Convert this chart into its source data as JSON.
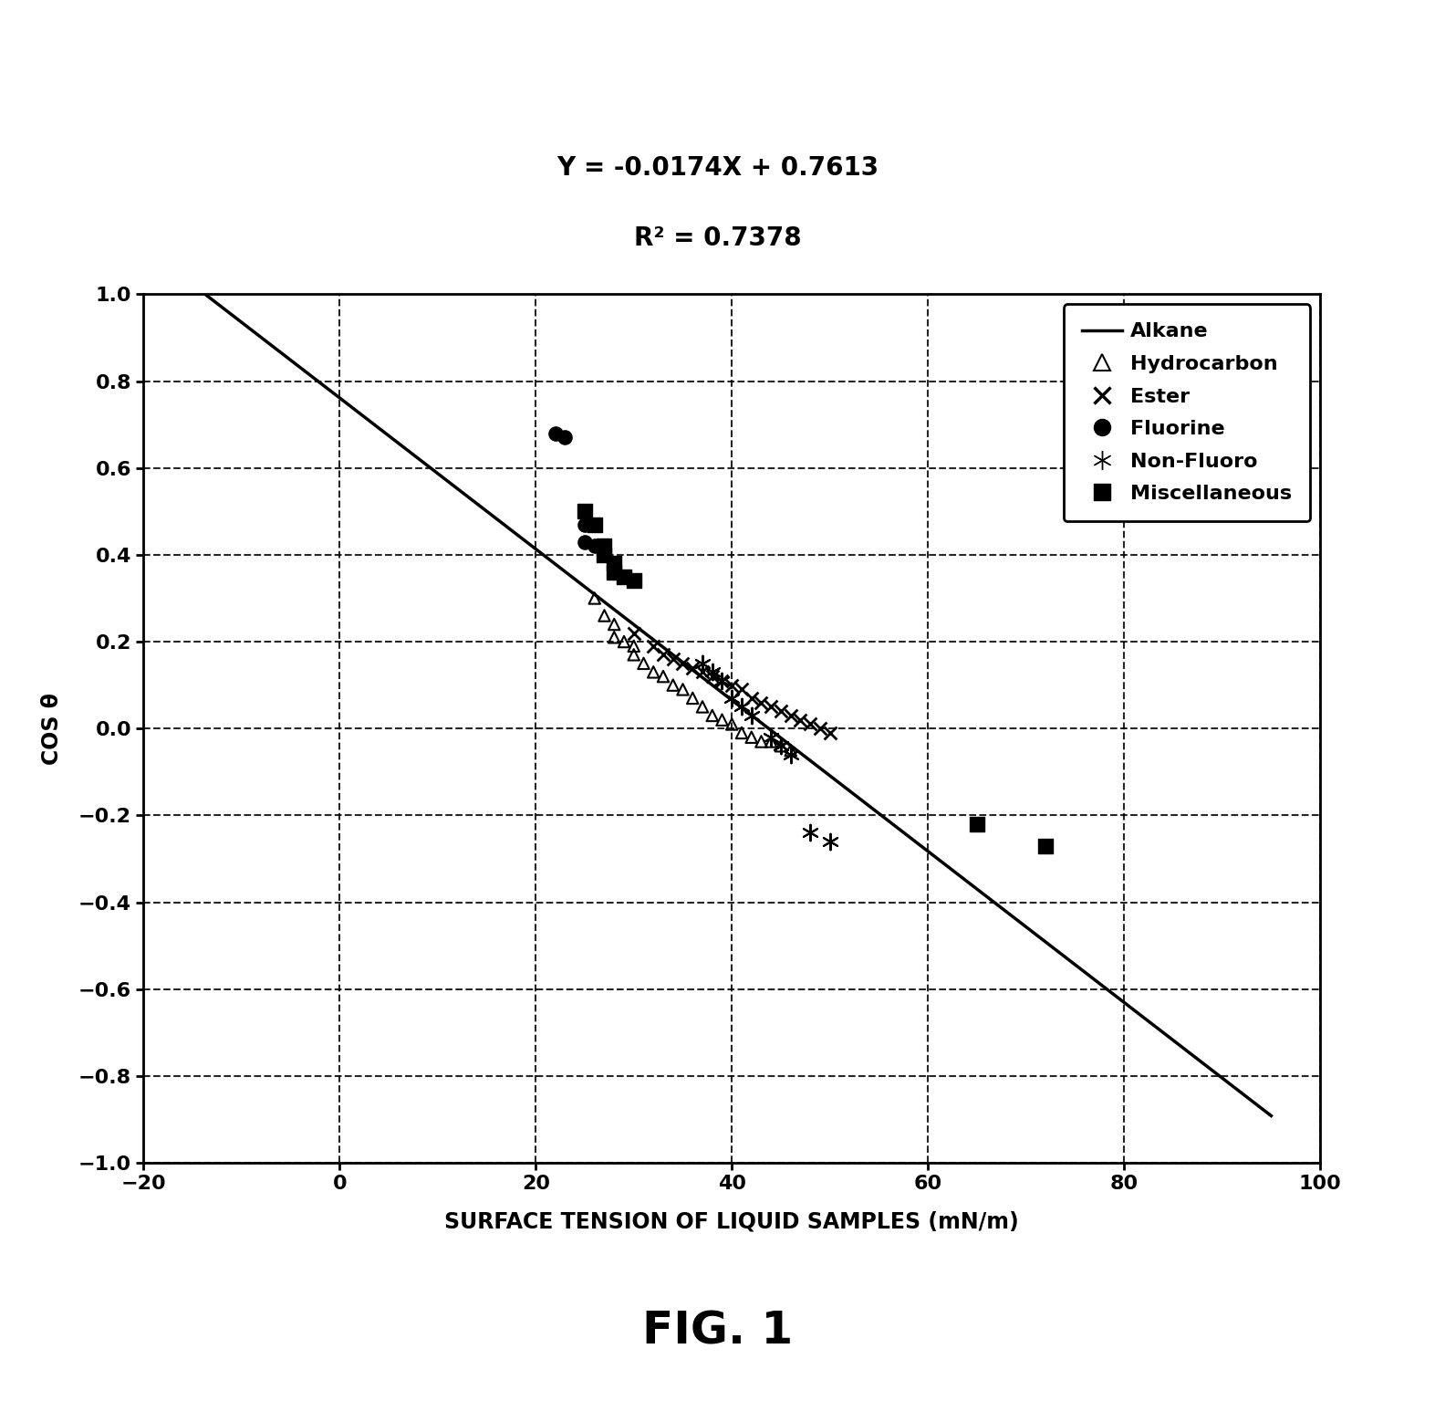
{
  "title_line1": "Y = -0.0174X + 0.7613",
  "title_line2": "R² = 0.7378",
  "xlabel": "SURFACE TENSION OF LIQUID SAMPLES (mN/m)",
  "ylabel": "COS θ",
  "xlim": [
    -20,
    100
  ],
  "ylim": [
    -1,
    1
  ],
  "xticks": [
    -20,
    0,
    20,
    40,
    60,
    80,
    100
  ],
  "yticks": [
    -1,
    -0.8,
    -0.6,
    -0.4,
    -0.2,
    0,
    0.2,
    0.4,
    0.6,
    0.8,
    1
  ],
  "slope": -0.0174,
  "intercept": 0.7613,
  "line_x": [
    -20,
    95
  ],
  "fluorine_x": [
    22,
    23,
    25,
    25,
    26,
    27
  ],
  "fluorine_y": [
    0.68,
    0.67,
    0.47,
    0.43,
    0.42,
    0.4
  ],
  "hydrocarbon_x": [
    26,
    27,
    28,
    28,
    29,
    30,
    30,
    31,
    32,
    33,
    34,
    35,
    36,
    37,
    38,
    39,
    40,
    41,
    42,
    43,
    44,
    45,
    46
  ],
  "hydrocarbon_y": [
    0.3,
    0.26,
    0.24,
    0.21,
    0.2,
    0.19,
    0.17,
    0.15,
    0.13,
    0.12,
    0.1,
    0.09,
    0.07,
    0.05,
    0.03,
    0.02,
    0.01,
    -0.01,
    -0.02,
    -0.03,
    -0.03,
    -0.04,
    -0.05
  ],
  "ester_x": [
    30,
    32,
    33,
    34,
    35,
    36,
    37,
    38,
    39,
    40,
    41,
    42,
    43,
    44,
    45,
    46,
    47,
    48,
    49,
    50
  ],
  "ester_y": [
    0.22,
    0.19,
    0.17,
    0.16,
    0.15,
    0.14,
    0.13,
    0.12,
    0.11,
    0.1,
    0.09,
    0.07,
    0.06,
    0.05,
    0.04,
    0.03,
    0.02,
    0.01,
    0.0,
    -0.01
  ],
  "nonfluoro_x": [
    37,
    38,
    39,
    40,
    41,
    42,
    44,
    45,
    46,
    48,
    50
  ],
  "nonfluoro_y": [
    0.15,
    0.13,
    0.11,
    0.07,
    0.05,
    0.03,
    -0.02,
    -0.04,
    -0.06,
    -0.24,
    -0.26
  ],
  "misc_x": [
    25,
    26,
    27,
    27,
    28,
    28,
    29,
    30,
    65,
    72
  ],
  "misc_y": [
    0.5,
    0.47,
    0.42,
    0.4,
    0.38,
    0.36,
    0.35,
    0.34,
    -0.22,
    -0.27
  ],
  "fig_label": "FIG. 1",
  "background_color": "#ffffff",
  "text_color": "#000000"
}
